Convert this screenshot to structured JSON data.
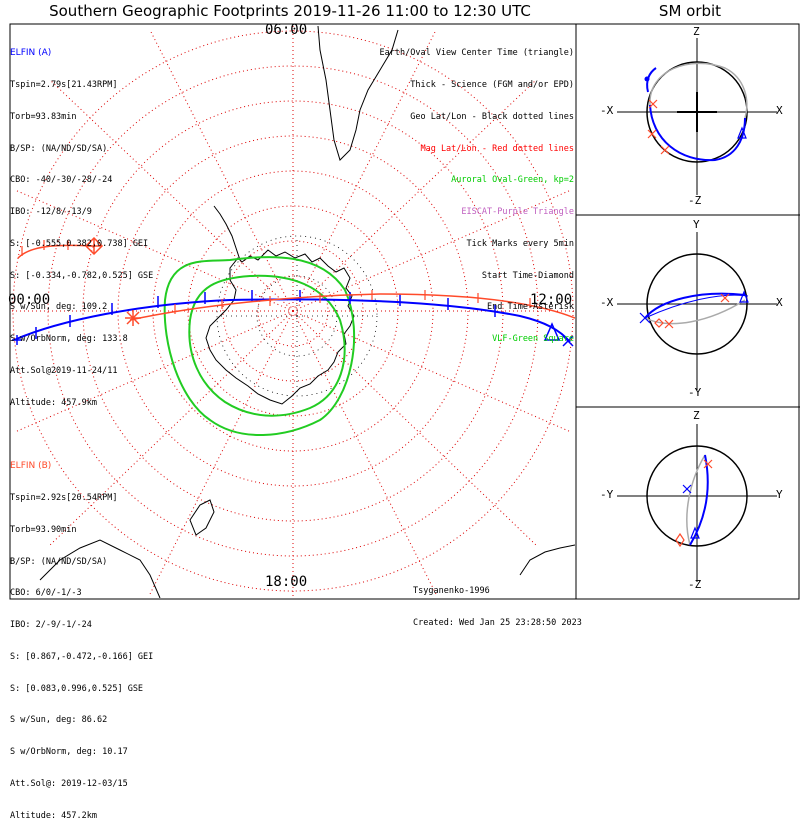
{
  "title": "Southern Geographic Footprints 2019-11-26 11:00 to 12:30 UTC",
  "sm_title": "SM orbit",
  "clock": {
    "top": "06:00",
    "left": "00:00",
    "right": "12:00",
    "bottom": "18:00"
  },
  "elfin_a": {
    "name": "ELFIN (A)",
    "color": "#0000ff",
    "lines": [
      "Tspin=2.79s[21.43RPM]",
      "Torb=93.83min",
      "B/SP: (NA/ND/SD/SA)",
      "CBO: -40/-30/-28/-24",
      "IBO: -12/8/-13/9",
      "S: [-0.555,0.382,0.738] GEI",
      "S: [-0.334,-0.782,0.525] GSE",
      "S w/Sun, deg: 109.2",
      "S w/OrbNorm, deg: 133.8",
      "Att.Sol@2019-11-24/11",
      "Altitude: 457.9km"
    ]
  },
  "elfin_b": {
    "name": "ELFIN (B)",
    "color": "#ff4a2a",
    "lines": [
      "Tspin=2.92s[20.54RPM]",
      "Torb=93.90min",
      "B/SP: (NA/ND/SD/SA)",
      "CBO: 6/0/-1/-3",
      "IBO: 2/-9/-1/-24",
      "S: [0.867,-0.472,-0.166] GEI",
      "S: [0.083,0.996,0.525] GSE",
      "S w/Sun, deg: 86.62",
      "S w/OrbNorm, deg: 10.17",
      "Att.Sol@: 2019-12-03/15",
      "Altitude: 457.2km"
    ]
  },
  "legend": [
    {
      "text": "Earth/Oval View Center Time (triangle)",
      "color": "#000000"
    },
    {
      "text": "Thick - Science (FGM and/or EPD)",
      "color": "#000000"
    },
    {
      "text": "Geo Lat/Lon - Black dotted lines",
      "color": "#000000"
    },
    {
      "text": "Mag Lat/Lon - Red dotted lines",
      "color": "#ff0000"
    },
    {
      "text": "Auroral Oval-Green, kp=2",
      "color": "#00cc00"
    },
    {
      "text": "EISCAT-Purple Triangle",
      "color": "#c060c0"
    },
    {
      "text": "Tick Marks every 5min",
      "color": "#000000"
    },
    {
      "text": "Start Time-Diamond",
      "color": "#000000"
    },
    {
      "text": "End Time-Asterisk",
      "color": "#000000"
    },
    {
      "text": "VLF-Green Square",
      "color": "#00cc00"
    }
  ],
  "credit": [
    "Tsyganenko-1996",
    "Created: Wed Jan 25 23:28:50 2023"
  ],
  "sm_panels": [
    {
      "top": "Z",
      "bottom": "-Z",
      "left": "-X",
      "right": "X"
    },
    {
      "top": "Y",
      "bottom": "-Y",
      "left": "-X",
      "right": "X"
    },
    {
      "top": "Z",
      "bottom": "-Z",
      "left": "-Y",
      "right": "Y"
    }
  ],
  "colors": {
    "blue_track": "#0000ff",
    "red_track": "#ff4a2a",
    "oval": "#22cc22",
    "grid_red": "#dd0000",
    "grey_track": "#aaaaaa"
  }
}
